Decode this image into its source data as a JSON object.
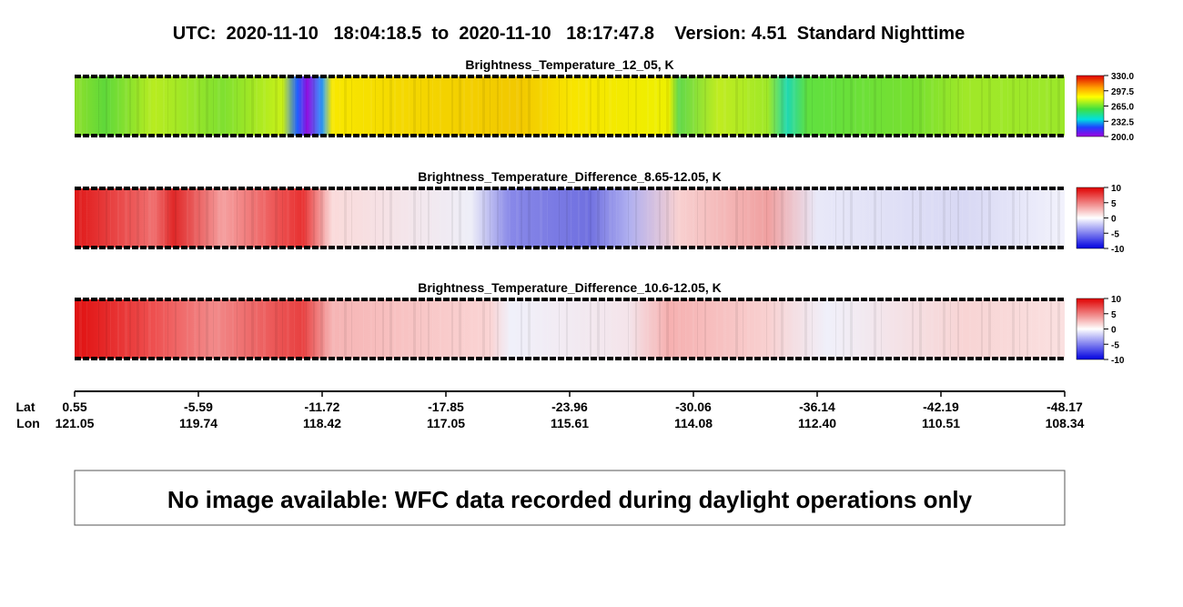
{
  "title": "UTC:  2020-11-10   18:04:18.5  to  2020-11-10   18:17:47.8    Version: 4.51  Standard Nighttime",
  "panels": [
    {
      "title": "Brightness_Temperature_12_05, K",
      "colorbar": [
        "330.0",
        "297.5",
        "265.0",
        "232.5",
        "200.0"
      ]
    },
    {
      "title": "Brightness_Temperature_Difference_8.65-12.05, K",
      "colorbar": [
        "10",
        "5",
        "0",
        "-5",
        "-10"
      ]
    },
    {
      "title": "Brightness_Temperature_Difference_10.6-12.05, K",
      "colorbar": [
        "10",
        "5",
        "0",
        "-5",
        "-10"
      ]
    }
  ],
  "axis": {
    "lat_label": "Lat",
    "lon_label": "Lon",
    "lat": [
      "0.55",
      "-5.59",
      "-11.72",
      "-17.85",
      "-23.96",
      "-30.06",
      "-36.14",
      "-42.19",
      "-48.17"
    ],
    "lon": [
      "121.05",
      "119.74",
      "118.42",
      "117.05",
      "115.61",
      "114.08",
      "112.40",
      "110.51",
      "108.34"
    ]
  },
  "message": "No image available: WFC data recorded during daylight operations only"
}
